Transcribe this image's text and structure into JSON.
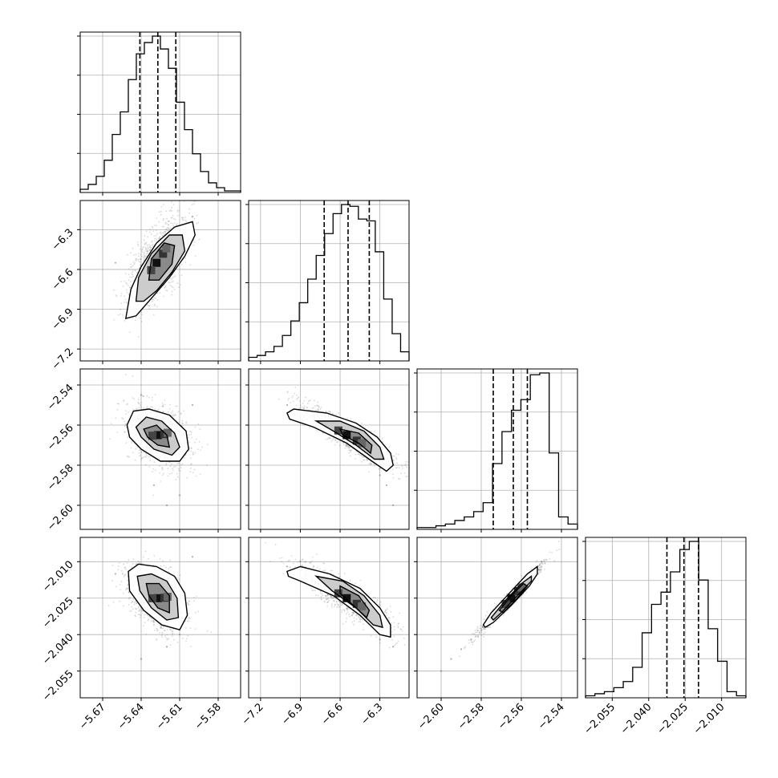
{
  "chart_data": {
    "type": "scatter",
    "title": "",
    "grid": true,
    "colors": {
      "axes": "#000000",
      "grid": "#b0b0b0",
      "points": "#555555",
      "contours": "#000000"
    },
    "parameters": [
      {
        "index": 0,
        "range": [
          -5.6875,
          -5.5625
        ],
        "ticks": [
          -5.67,
          -5.64,
          -5.61,
          -5.58
        ],
        "tick_labels": [
          "−5.67",
          "−5.64",
          "−5.61",
          "−5.58"
        ],
        "quantiles": [
          -5.641,
          -5.627,
          -5.613
        ],
        "histogram": [
          0.02,
          0.05,
          0.1,
          0.2,
          0.36,
          0.5,
          0.7,
          0.86,
          0.93,
          0.97,
          0.89,
          0.77,
          0.56,
          0.39,
          0.24,
          0.13,
          0.06,
          0.03,
          0.01,
          0.01
        ]
      },
      {
        "index": 1,
        "range": [
          -7.29,
          -6.08
        ],
        "ticks": [
          -7.2,
          -6.9,
          -6.6,
          -6.3
        ],
        "tick_labels": [
          "−7.2",
          "−6.9",
          "−6.6",
          "−6.3"
        ],
        "quantiles": [
          -6.72,
          -6.54,
          -6.38
        ],
        "histogram": [
          0.02,
          0.03,
          0.05,
          0.08,
          0.14,
          0.22,
          0.32,
          0.45,
          0.58,
          0.7,
          0.81,
          0.86,
          0.85,
          0.78,
          0.77,
          0.6,
          0.34,
          0.15,
          0.05
        ]
      },
      {
        "index": 2,
        "range": [
          -2.612,
          -2.532
        ],
        "ticks": [
          -2.6,
          -2.58,
          -2.56,
          -2.54
        ],
        "tick_labels": [
          "−2.60",
          "−2.58",
          "−2.56",
          "−2.54"
        ],
        "quantiles": [
          -2.574,
          -2.564,
          -2.557
        ],
        "histogram": [
          0.01,
          0.01,
          0.02,
          0.03,
          0.05,
          0.07,
          0.1,
          0.15,
          0.37,
          0.55,
          0.67,
          0.73,
          0.87,
          0.88,
          0.43,
          0.07,
          0.03
        ]
      },
      {
        "index": 3,
        "range": [
          -2.066,
          -2.0
        ],
        "ticks": [
          -2.055,
          -2.04,
          -2.025,
          -2.01
        ],
        "tick_labels": [
          "−2.055",
          "−2.040",
          "−2.025",
          "−2.010"
        ],
        "quantiles": [
          -2.0325,
          -2.0255,
          -2.0195
        ],
        "histogram": [
          0.01,
          0.02,
          0.03,
          0.05,
          0.08,
          0.15,
          0.32,
          0.46,
          0.52,
          0.62,
          0.73,
          0.77,
          0.58,
          0.34,
          0.18,
          0.03,
          0.01
        ]
      }
    ],
    "pairs": [
      {
        "x": 0,
        "y": 1,
        "mean": [
          -5.628,
          -6.55
        ],
        "sd": [
          0.012,
          0.18
        ],
        "rho": 0.62,
        "scatter": [
          [
            -5.66,
            -6.55
          ],
          [
            -5.64,
            -6.9
          ],
          [
            -5.61,
            -6.3
          ],
          [
            -5.65,
            -6.95
          ],
          [
            -5.6,
            -6.2
          ],
          [
            -5.63,
            -6.7
          ]
        ],
        "contours": [
          [
            [
              -5.652,
              -6.97
            ],
            [
              -5.648,
              -6.75
            ],
            [
              -5.64,
              -6.58
            ],
            [
              -5.628,
              -6.4
            ],
            [
              -5.614,
              -6.28
            ],
            [
              -5.6,
              -6.24
            ],
            [
              -5.598,
              -6.34
            ],
            [
              -5.606,
              -6.5
            ],
            [
              -5.618,
              -6.66
            ],
            [
              -5.634,
              -6.84
            ],
            [
              -5.644,
              -6.95
            ]
          ],
          [
            [
              -5.644,
              -6.84
            ],
            [
              -5.642,
              -6.66
            ],
            [
              -5.632,
              -6.48
            ],
            [
              -5.618,
              -6.34
            ],
            [
              -5.608,
              -6.34
            ],
            [
              -5.606,
              -6.46
            ],
            [
              -5.616,
              -6.62
            ],
            [
              -5.628,
              -6.76
            ],
            [
              -5.638,
              -6.84
            ]
          ],
          [
            [
              -5.634,
              -6.68
            ],
            [
              -5.632,
              -6.52
            ],
            [
              -5.622,
              -6.4
            ],
            [
              -5.614,
              -6.42
            ],
            [
              -5.616,
              -6.56
            ],
            [
              -5.626,
              -6.68
            ]
          ]
        ]
      },
      {
        "x": 0,
        "y": 2,
        "mean": [
          -5.627,
          -2.565
        ],
        "sd": [
          0.012,
          0.008
        ],
        "rho": -0.35,
        "scatter": [
          [
            -5.62,
            -2.6
          ],
          [
            -5.61,
            -2.595
          ],
          [
            -5.64,
            -2.545
          ],
          [
            -5.6,
            -2.55
          ],
          [
            -5.63,
            -2.59
          ]
        ],
        "contours": [
          [
            [
              -5.651,
              -2.56
            ],
            [
              -5.646,
              -2.553
            ],
            [
              -5.634,
              -2.552
            ],
            [
              -5.618,
              -2.555
            ],
            [
              -5.605,
              -2.563
            ],
            [
              -5.603,
              -2.572
            ],
            [
              -5.61,
              -2.578
            ],
            [
              -5.625,
              -2.578
            ],
            [
              -5.64,
              -2.572
            ],
            [
              -5.649,
              -2.566
            ]
          ],
          [
            [
              -5.644,
              -2.561
            ],
            [
              -5.636,
              -2.556
            ],
            [
              -5.624,
              -2.558
            ],
            [
              -5.614,
              -2.564
            ],
            [
              -5.61,
              -2.571
            ],
            [
              -5.616,
              -2.575
            ],
            [
              -5.63,
              -2.572
            ],
            [
              -5.64,
              -2.566
            ]
          ],
          [
            [
              -5.638,
              -2.562
            ],
            [
              -5.628,
              -2.56
            ],
            [
              -5.62,
              -2.565
            ],
            [
              -5.618,
              -2.571
            ],
            [
              -5.627,
              -2.57
            ],
            [
              -5.635,
              -2.566
            ]
          ]
        ]
      },
      {
        "x": 1,
        "y": 2,
        "mean": [
          -6.55,
          -2.565
        ],
        "sd": [
          0.18,
          0.008
        ],
        "rho": -0.9,
        "scatter": [
          [
            -6.2,
            -2.6
          ],
          [
            -6.25,
            -2.59
          ],
          [
            -6.95,
            -2.553
          ],
          [
            -6.3,
            -2.585
          ],
          [
            -7.0,
            -2.55
          ]
        ],
        "contours": [
          [
            [
              -7.0,
              -2.554
            ],
            [
              -6.95,
              -2.552
            ],
            [
              -6.7,
              -2.554
            ],
            [
              -6.48,
              -2.559
            ],
            [
              -6.32,
              -2.566
            ],
            [
              -6.22,
              -2.574
            ],
            [
              -6.2,
              -2.58
            ],
            [
              -6.25,
              -2.583
            ],
            [
              -6.36,
              -2.578
            ],
            [
              -6.55,
              -2.569
            ],
            [
              -6.8,
              -2.561
            ],
            [
              -6.98,
              -2.557
            ]
          ],
          [
            [
              -6.78,
              -2.558
            ],
            [
              -6.6,
              -2.558
            ],
            [
              -6.42,
              -2.563
            ],
            [
              -6.3,
              -2.571
            ],
            [
              -6.27,
              -2.577
            ],
            [
              -6.34,
              -2.577
            ],
            [
              -6.48,
              -2.57
            ],
            [
              -6.65,
              -2.563
            ]
          ],
          [
            [
              -6.6,
              -2.562
            ],
            [
              -6.46,
              -2.564
            ],
            [
              -6.36,
              -2.57
            ],
            [
              -6.37,
              -2.574
            ],
            [
              -6.46,
              -2.569
            ],
            [
              -6.58,
              -2.565
            ]
          ]
        ]
      },
      {
        "x": 0,
        "y": 3,
        "mean": [
          -5.627,
          -2.025
        ],
        "sd": [
          0.012,
          0.007
        ],
        "rho": -0.4,
        "scatter": [
          [
            -5.62,
            -2.045
          ],
          [
            -5.61,
            -2.04
          ],
          [
            -5.64,
            -2.05
          ],
          [
            -5.6,
            -2.008
          ],
          [
            -5.66,
            -2.015
          ]
        ],
        "contours": [
          [
            [
              -5.65,
              -2.014
            ],
            [
              -5.642,
              -2.011
            ],
            [
              -5.628,
              -2.012
            ],
            [
              -5.614,
              -2.016
            ],
            [
              -5.606,
              -2.023
            ],
            [
              -5.604,
              -2.032
            ],
            [
              -5.61,
              -2.038
            ],
            [
              -5.624,
              -2.036
            ],
            [
              -5.638,
              -2.03
            ],
            [
              -5.649,
              -2.022
            ]
          ],
          [
            [
              -5.643,
              -2.016
            ],
            [
              -5.632,
              -2.015
            ],
            [
              -5.62,
              -2.018
            ],
            [
              -5.612,
              -2.025
            ],
            [
              -5.611,
              -2.033
            ],
            [
              -5.62,
              -2.034
            ],
            [
              -5.632,
              -2.029
            ],
            [
              -5.641,
              -2.022
            ]
          ],
          [
            [
              -5.636,
              -2.019
            ],
            [
              -5.626,
              -2.019
            ],
            [
              -5.618,
              -2.024
            ],
            [
              -5.618,
              -2.031
            ],
            [
              -5.627,
              -2.029
            ],
            [
              -5.634,
              -2.024
            ]
          ]
        ]
      },
      {
        "x": 1,
        "y": 3,
        "mean": [
          -6.55,
          -2.025
        ],
        "sd": [
          0.18,
          0.007
        ],
        "rho": -0.88,
        "scatter": [
          [
            -6.2,
            -2.045
          ],
          [
            -6.25,
            -2.04
          ],
          [
            -7.0,
            -2.012
          ],
          [
            -6.3,
            -2.042
          ],
          [
            -6.9,
            -2.01
          ]
        ],
        "contours": [
          [
            [
              -7.0,
              -2.014
            ],
            [
              -6.9,
              -2.012
            ],
            [
              -6.68,
              -2.015
            ],
            [
              -6.45,
              -2.021
            ],
            [
              -6.3,
              -2.029
            ],
            [
              -6.22,
              -2.036
            ],
            [
              -6.22,
              -2.041
            ],
            [
              -6.3,
              -2.04
            ],
            [
              -6.45,
              -2.032
            ],
            [
              -6.65,
              -2.024
            ],
            [
              -6.9,
              -2.018
            ],
            [
              -6.99,
              -2.016
            ]
          ],
          [
            [
              -6.78,
              -2.016
            ],
            [
              -6.58,
              -2.018
            ],
            [
              -6.42,
              -2.024
            ],
            [
              -6.3,
              -2.032
            ],
            [
              -6.28,
              -2.037
            ],
            [
              -6.35,
              -2.036
            ],
            [
              -6.48,
              -2.029
            ],
            [
              -6.66,
              -2.022
            ]
          ],
          [
            [
              -6.6,
              -2.02
            ],
            [
              -6.46,
              -2.024
            ],
            [
              -6.38,
              -2.03
            ],
            [
              -6.4,
              -2.033
            ],
            [
              -6.5,
              -2.028
            ],
            [
              -6.6,
              -2.023
            ]
          ]
        ]
      },
      {
        "x": 2,
        "y": 3,
        "mean": [
          -2.565,
          -2.025
        ],
        "sd": [
          0.008,
          0.007
        ],
        "rho": 0.98,
        "scatter": [
          [
            -2.6,
            -2.055
          ],
          [
            -2.595,
            -2.05
          ],
          [
            -2.59,
            -2.046
          ],
          [
            -2.55,
            -2.01
          ],
          [
            -2.585,
            -2.042
          ]
        ],
        "contours": [
          [
            [
              -2.579,
              -2.036
            ],
            [
              -2.575,
              -2.031
            ],
            [
              -2.566,
              -2.023
            ],
            [
              -2.557,
              -2.015
            ],
            [
              -2.552,
              -2.012
            ],
            [
              -2.552,
              -2.015
            ],
            [
              -2.556,
              -2.02
            ],
            [
              -2.565,
              -2.028
            ],
            [
              -2.574,
              -2.035
            ],
            [
              -2.578,
              -2.037
            ]
          ],
          [
            [
              -2.575,
              -2.033
            ],
            [
              -2.568,
              -2.026
            ],
            [
              -2.56,
              -2.019
            ],
            [
              -2.555,
              -2.016
            ],
            [
              -2.555,
              -2.018
            ],
            [
              -2.562,
              -2.024
            ],
            [
              -2.57,
              -2.031
            ],
            [
              -2.574,
              -2.034
            ]
          ],
          [
            [
              -2.571,
              -2.03
            ],
            [
              -2.565,
              -2.024
            ],
            [
              -2.559,
              -2.019
            ],
            [
              -2.557,
              -2.02
            ],
            [
              -2.563,
              -2.026
            ],
            [
              -2.569,
              -2.031
            ]
          ]
        ]
      }
    ]
  }
}
